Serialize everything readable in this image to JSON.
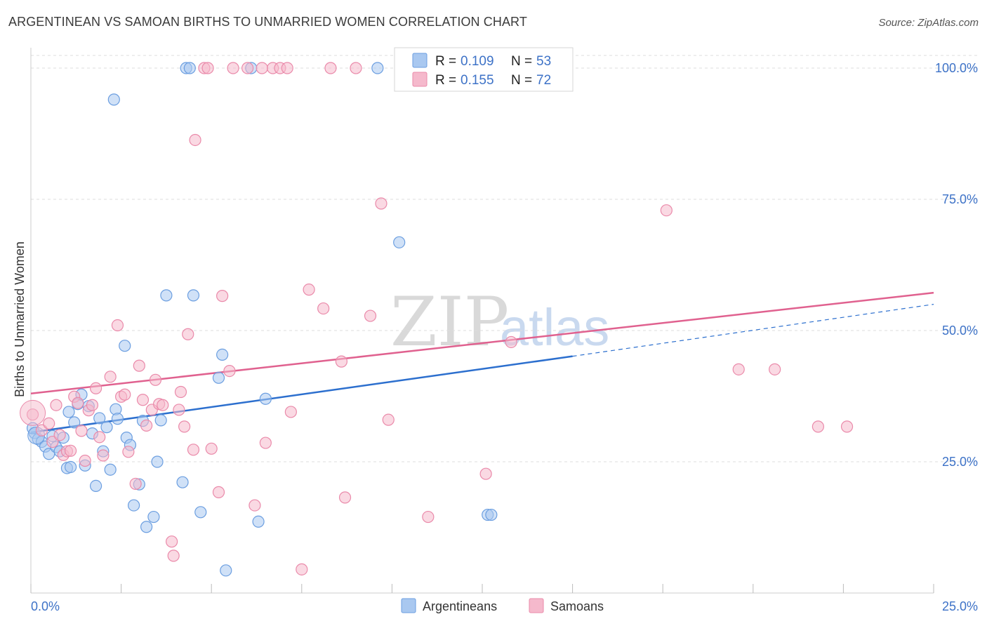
{
  "header": {
    "title": "ARGENTINEAN VS SAMOAN BIRTHS TO UNMARRIED WOMEN CORRELATION CHART",
    "source": "Source: ZipAtlas.com"
  },
  "watermark": {
    "part1": "ZIP",
    "part2": "atlas"
  },
  "colors": {
    "blue_fill": "#a9c8f0",
    "blue_stroke": "#6b9ee0",
    "blue_line": "#2c6fce",
    "pink_fill": "#f5b9cc",
    "pink_stroke": "#ea8aaa",
    "pink_line": "#e0618f",
    "tick_text": "#3d72c7",
    "grid": "#dddddd"
  },
  "legend": {
    "series": [
      {
        "r_label": "R =",
        "r_value": "0.109",
        "n_label": "N =",
        "n_value": "53"
      },
      {
        "r_label": "R =",
        "r_value": "0.155",
        "n_label": "N =",
        "n_value": "72"
      }
    ]
  },
  "chart_data": {
    "type": "scatter",
    "title": "ARGENTINEAN VS SAMOAN BIRTHS TO UNMARRIED WOMEN CORRELATION CHART",
    "xlabel": "",
    "ylabel": "Births to Unmarried Women",
    "xlim": [
      0,
      25
    ],
    "ylim": [
      0,
      100
    ],
    "x_tick_labels": [
      "0.0%",
      "25.0%"
    ],
    "y_tick_labels": [
      {
        "label": "100.0%",
        "value": 100
      },
      {
        "label": "75.0%",
        "value": 75
      },
      {
        "label": "50.0%",
        "value": 50
      },
      {
        "label": "25.0%",
        "value": 25
      }
    ],
    "x_minor_ticks": [
      0,
      2.5,
      5,
      7.5,
      10,
      12.5,
      15,
      17.5,
      20,
      22.5,
      25
    ],
    "grid": true,
    "legend_position": "top-center",
    "series": [
      {
        "name": "Argentineans",
        "color": "#a9c8f0",
        "trend": {
          "x0": 0,
          "y0": 30.6,
          "x1": 15,
          "y1": 45.1,
          "dash_x1": 25,
          "dash_y1": 55
        },
        "points": [
          [
            0.1,
            30.5
          ],
          [
            0.2,
            29.3
          ],
          [
            0.3,
            28.8
          ],
          [
            0.4,
            27.9
          ],
          [
            0.5,
            26.5
          ],
          [
            0.6,
            29.9
          ],
          [
            0.7,
            27.8
          ],
          [
            0.8,
            27.0
          ],
          [
            0.9,
            29.6
          ],
          [
            1.0,
            23.8
          ],
          [
            1.05,
            34.5
          ],
          [
            1.1,
            24.0
          ],
          [
            1.2,
            32.5
          ],
          [
            1.3,
            36.0
          ],
          [
            1.4,
            37.8
          ],
          [
            1.5,
            24.3
          ],
          [
            1.6,
            35.6
          ],
          [
            1.7,
            30.4
          ],
          [
            1.8,
            20.4
          ],
          [
            1.9,
            33.3
          ],
          [
            2.0,
            27.0
          ],
          [
            2.1,
            31.6
          ],
          [
            2.2,
            23.5
          ],
          [
            2.35,
            35.0
          ],
          [
            2.4,
            33.2
          ],
          [
            2.6,
            47.1
          ],
          [
            2.65,
            29.6
          ],
          [
            2.75,
            28.2
          ],
          [
            2.85,
            16.7
          ],
          [
            3.0,
            20.7
          ],
          [
            3.1,
            32.8
          ],
          [
            3.2,
            12.6
          ],
          [
            3.4,
            14.5
          ],
          [
            3.5,
            25.0
          ],
          [
            3.6,
            32.9
          ],
          [
            3.75,
            56.7
          ],
          [
            4.2,
            21.1
          ],
          [
            4.3,
            100
          ],
          [
            4.4,
            100
          ],
          [
            4.5,
            56.7
          ],
          [
            4.7,
            15.4
          ],
          [
            5.2,
            41.0
          ],
          [
            5.3,
            45.4
          ],
          [
            5.4,
            4.3
          ],
          [
            6.1,
            100
          ],
          [
            6.3,
            13.6
          ],
          [
            6.5,
            37.0
          ],
          [
            9.6,
            100
          ],
          [
            2.3,
            94.0
          ],
          [
            10.2,
            66.8
          ],
          [
            12.65,
            14.9
          ],
          [
            12.75,
            14.9
          ],
          [
            0.05,
            31.4
          ]
        ]
      },
      {
        "name": "Samoans",
        "color": "#f5b9cc",
        "trend": {
          "x0": 0,
          "y0": 38.0,
          "x1": 25,
          "y1": 57.2
        },
        "points": [
          [
            0.05,
            34.0
          ],
          [
            0.3,
            31.0
          ],
          [
            0.5,
            32.3
          ],
          [
            0.6,
            28.8
          ],
          [
            0.7,
            35.8
          ],
          [
            0.8,
            30.1
          ],
          [
            0.9,
            26.3
          ],
          [
            1.0,
            27.0
          ],
          [
            1.1,
            27.1
          ],
          [
            1.2,
            37.4
          ],
          [
            1.3,
            36.2
          ],
          [
            1.4,
            30.9
          ],
          [
            1.5,
            25.2
          ],
          [
            1.6,
            34.8
          ],
          [
            1.7,
            35.8
          ],
          [
            1.8,
            39.0
          ],
          [
            1.9,
            29.7
          ],
          [
            2.0,
            26.2
          ],
          [
            2.2,
            41.2
          ],
          [
            2.4,
            51.0
          ],
          [
            2.5,
            37.4
          ],
          [
            2.6,
            37.8
          ],
          [
            2.7,
            26.9
          ],
          [
            2.9,
            20.8
          ],
          [
            3.0,
            43.3
          ],
          [
            3.1,
            36.8
          ],
          [
            3.2,
            31.9
          ],
          [
            3.35,
            34.9
          ],
          [
            3.45,
            40.6
          ],
          [
            3.55,
            36.0
          ],
          [
            3.65,
            35.8
          ],
          [
            3.9,
            9.8
          ],
          [
            3.95,
            7.1
          ],
          [
            4.1,
            34.9
          ],
          [
            4.15,
            38.3
          ],
          [
            4.25,
            31.7
          ],
          [
            4.35,
            49.3
          ],
          [
            4.5,
            27.3
          ],
          [
            4.55,
            86.3
          ],
          [
            4.8,
            100
          ],
          [
            4.9,
            100
          ],
          [
            5.0,
            27.5
          ],
          [
            5.2,
            19.2
          ],
          [
            5.3,
            56.6
          ],
          [
            5.5,
            42.3
          ],
          [
            5.6,
            100
          ],
          [
            6.0,
            100
          ],
          [
            6.2,
            16.7
          ],
          [
            6.4,
            100
          ],
          [
            6.5,
            28.6
          ],
          [
            6.7,
            100
          ],
          [
            6.9,
            100
          ],
          [
            7.1,
            100
          ],
          [
            7.2,
            34.5
          ],
          [
            7.5,
            4.5
          ],
          [
            7.7,
            57.8
          ],
          [
            8.1,
            54.2
          ],
          [
            8.3,
            100
          ],
          [
            8.6,
            44.1
          ],
          [
            8.7,
            18.2
          ],
          [
            9.0,
            100
          ],
          [
            9.4,
            52.8
          ],
          [
            9.7,
            74.2
          ],
          [
            9.9,
            33.0
          ],
          [
            11.0,
            14.5
          ],
          [
            12.6,
            22.7
          ],
          [
            13.3,
            47.8
          ],
          [
            17.6,
            72.9
          ],
          [
            19.6,
            42.6
          ],
          [
            20.6,
            42.6
          ],
          [
            21.8,
            31.7
          ],
          [
            22.6,
            31.7
          ]
        ]
      }
    ]
  },
  "bottom_legend": {
    "items": [
      {
        "label": "Argentineans"
      },
      {
        "label": "Samoans"
      }
    ]
  }
}
